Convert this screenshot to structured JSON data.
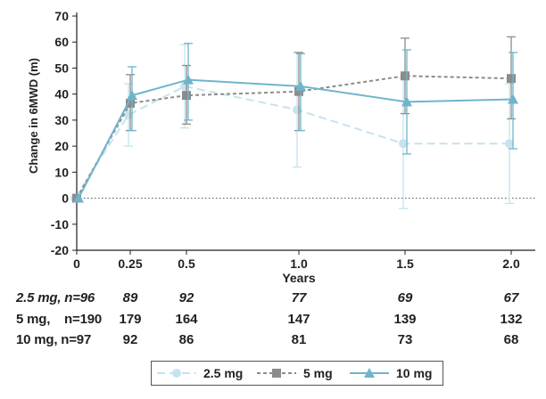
{
  "chart_data": {
    "type": "line",
    "ylabel": "Change in 6MWD (m)",
    "xlabel": "Years",
    "ylim": [
      -20,
      70
    ],
    "yticks": [
      -20,
      -10,
      0,
      10,
      20,
      30,
      40,
      50,
      60,
      70
    ],
    "x_ticks": [
      {
        "value": 0,
        "label": "0"
      },
      {
        "value": 0.25,
        "label": "0.25"
      },
      {
        "value": 0.5,
        "label": "0.5"
      },
      {
        "value": 1.0,
        "label": "1.0"
      },
      {
        "value": 1.5,
        "label": "1.5"
      },
      {
        "value": 2.0,
        "label": "2.0"
      }
    ],
    "series": [
      {
        "name": "2.5 mg",
        "color": "#c6e3ee",
        "marker": "circle",
        "line": "long-dash",
        "x": [
          0,
          0.25,
          0.5,
          1.0,
          1.5,
          2.0
        ],
        "y": [
          0,
          32,
          43,
          34,
          21,
          21
        ],
        "err_low": [
          0,
          20,
          27,
          12,
          -4,
          -2
        ],
        "err_high": [
          0,
          44,
          59,
          56,
          46,
          44
        ]
      },
      {
        "name": "5 mg",
        "color": "#8c8c8c",
        "marker": "square",
        "line": "short-dash",
        "x": [
          0,
          0.25,
          0.5,
          1.0,
          1.5,
          2.0
        ],
        "y": [
          0,
          36.5,
          39.5,
          41,
          47,
          46
        ],
        "err_low": [
          0,
          26,
          28.5,
          26,
          32.5,
          30.5
        ],
        "err_high": [
          0,
          47.5,
          51,
          56,
          61.5,
          62
        ]
      },
      {
        "name": "10 mg",
        "color": "#6fb4cc",
        "marker": "triangle",
        "line": "solid",
        "x": [
          0,
          0.25,
          0.5,
          1.0,
          1.5,
          2.0
        ],
        "y": [
          0,
          39.5,
          45.5,
          43,
          37,
          38
        ],
        "err_low": [
          0,
          26,
          30,
          26,
          17,
          19
        ],
        "err_high": [
          0,
          50.5,
          59.5,
          55.5,
          57,
          56
        ]
      }
    ],
    "n_at_risk": [
      {
        "label": "2.5 mg, n=96",
        "values": [
          "89",
          "92",
          "77",
          "69",
          "67"
        ],
        "italic": true
      },
      {
        "label": "5 mg,    n=190",
        "values": [
          "179",
          "164",
          "147",
          "139",
          "132"
        ],
        "italic": false
      },
      {
        "label": "10 mg, n=97",
        "values": [
          "92",
          "86",
          "81",
          "73",
          "68"
        ],
        "italic": false
      }
    ]
  }
}
